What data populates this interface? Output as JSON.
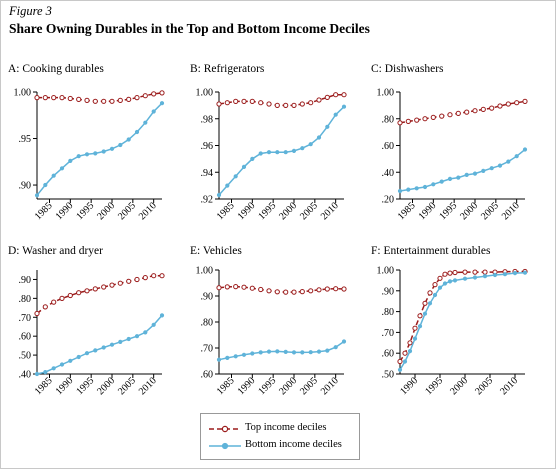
{
  "figure_label": "Figure 3",
  "figure_title": "Share Owning Durables in the Top and Bottom Income Deciles",
  "colors": {
    "top": "#9b1b1b",
    "bottom": "#5fb3d9",
    "axis": "#000000"
  },
  "legend": {
    "top": "Top income deciles",
    "bottom": "Bottom income deciles"
  },
  "chart_data": [
    {
      "type": "line",
      "title": "A: Cooking durables",
      "xlim": [
        1982,
        2012
      ],
      "ylim": [
        0.885,
        1.0
      ],
      "xticks": [
        1985,
        1990,
        1995,
        2000,
        2005,
        2010
      ],
      "yticks": [
        0.9,
        0.95,
        1.0
      ],
      "ytick_labels": [
        ".90",
        ".95",
        "1.00"
      ],
      "series": [
        {
          "name": "Top income deciles",
          "x": [
            1982,
            1984,
            1986,
            1988,
            1990,
            1992,
            1994,
            1996,
            1998,
            2000,
            2002,
            2004,
            2006,
            2008,
            2010,
            2012
          ],
          "y": [
            0.994,
            0.994,
            0.994,
            0.994,
            0.993,
            0.992,
            0.991,
            0.99,
            0.99,
            0.99,
            0.991,
            0.992,
            0.994,
            0.996,
            0.998,
            0.999
          ]
        },
        {
          "name": "Bottom income deciles",
          "x": [
            1982,
            1984,
            1986,
            1988,
            1990,
            1992,
            1994,
            1996,
            1998,
            2000,
            2002,
            2004,
            2006,
            2008,
            2010,
            2012
          ],
          "y": [
            0.889,
            0.9,
            0.91,
            0.918,
            0.926,
            0.931,
            0.933,
            0.934,
            0.936,
            0.939,
            0.943,
            0.949,
            0.957,
            0.967,
            0.979,
            0.988
          ]
        }
      ]
    },
    {
      "type": "line",
      "title": "B: Refrigerators",
      "xlim": [
        1982,
        2012
      ],
      "ylim": [
        0.92,
        1.0
      ],
      "xticks": [
        1985,
        1990,
        1995,
        2000,
        2005,
        2010
      ],
      "yticks": [
        0.92,
        0.94,
        0.96,
        0.98,
        1.0
      ],
      "ytick_labels": [
        ".92",
        ".94",
        ".96",
        ".98",
        "1.00"
      ],
      "series": [
        {
          "name": "Top income deciles",
          "x": [
            1982,
            1984,
            1986,
            1988,
            1990,
            1992,
            1994,
            1996,
            1998,
            2000,
            2002,
            2004,
            2006,
            2008,
            2010,
            2012
          ],
          "y": [
            0.991,
            0.992,
            0.993,
            0.993,
            0.993,
            0.992,
            0.991,
            0.99,
            0.99,
            0.99,
            0.991,
            0.992,
            0.994,
            0.996,
            0.998,
            0.998
          ]
        },
        {
          "name": "Bottom income deciles",
          "x": [
            1982,
            1984,
            1986,
            1988,
            1990,
            1992,
            1994,
            1996,
            1998,
            2000,
            2002,
            2004,
            2006,
            2008,
            2010,
            2012
          ],
          "y": [
            0.923,
            0.93,
            0.937,
            0.944,
            0.95,
            0.954,
            0.955,
            0.955,
            0.955,
            0.956,
            0.958,
            0.961,
            0.966,
            0.974,
            0.983,
            0.989
          ]
        }
      ]
    },
    {
      "type": "line",
      "title": "C: Dishwashers",
      "xlim": [
        1982,
        2012
      ],
      "ylim": [
        0.2,
        1.0
      ],
      "xticks": [
        1985,
        1990,
        1995,
        2000,
        2005,
        2010
      ],
      "yticks": [
        0.2,
        0.4,
        0.6,
        0.8,
        1.0
      ],
      "ytick_labels": [
        ".20",
        ".40",
        ".60",
        ".80",
        "1.00"
      ],
      "series": [
        {
          "name": "Top income deciles",
          "x": [
            1982,
            1984,
            1986,
            1988,
            1990,
            1992,
            1994,
            1996,
            1998,
            2000,
            2002,
            2004,
            2006,
            2008,
            2010,
            2012
          ],
          "y": [
            0.77,
            0.78,
            0.79,
            0.8,
            0.81,
            0.82,
            0.83,
            0.84,
            0.85,
            0.86,
            0.87,
            0.88,
            0.895,
            0.91,
            0.92,
            0.93
          ]
        },
        {
          "name": "Bottom income deciles",
          "x": [
            1982,
            1984,
            1986,
            1988,
            1990,
            1992,
            1994,
            1996,
            1998,
            2000,
            2002,
            2004,
            2006,
            2008,
            2010,
            2012
          ],
          "y": [
            0.26,
            0.27,
            0.28,
            0.29,
            0.31,
            0.33,
            0.35,
            0.36,
            0.38,
            0.39,
            0.41,
            0.43,
            0.45,
            0.48,
            0.52,
            0.57
          ]
        }
      ]
    },
    {
      "type": "line",
      "title": "D: Washer and dryer",
      "xlim": [
        1982,
        2012
      ],
      "ylim": [
        0.4,
        0.95
      ],
      "xticks": [
        1985,
        1990,
        1995,
        2000,
        2005,
        2010
      ],
      "yticks": [
        0.4,
        0.5,
        0.6,
        0.7,
        0.8,
        0.9
      ],
      "ytick_labels": [
        ".40",
        ".50",
        ".60",
        ".70",
        ".80",
        ".90"
      ],
      "series": [
        {
          "name": "Top income deciles",
          "x": [
            1982,
            1984,
            1986,
            1988,
            1990,
            1992,
            1994,
            1996,
            1998,
            2000,
            2002,
            2004,
            2006,
            2008,
            2010,
            2012
          ],
          "y": [
            0.72,
            0.755,
            0.78,
            0.8,
            0.815,
            0.83,
            0.84,
            0.85,
            0.86,
            0.87,
            0.88,
            0.89,
            0.9,
            0.91,
            0.92,
            0.92
          ]
        },
        {
          "name": "Bottom income deciles",
          "x": [
            1982,
            1984,
            1986,
            1988,
            1990,
            1992,
            1994,
            1996,
            1998,
            2000,
            2002,
            2004,
            2006,
            2008,
            2010,
            2012
          ],
          "y": [
            0.4,
            0.41,
            0.43,
            0.45,
            0.47,
            0.49,
            0.51,
            0.525,
            0.54,
            0.555,
            0.57,
            0.585,
            0.6,
            0.62,
            0.66,
            0.71
          ]
        }
      ]
    },
    {
      "type": "line",
      "title": "E: Vehicles",
      "xlim": [
        1982,
        2012
      ],
      "ylim": [
        0.6,
        1.0
      ],
      "xticks": [
        1985,
        1990,
        1995,
        2000,
        2005,
        2010
      ],
      "yticks": [
        0.6,
        0.7,
        0.8,
        0.9,
        1.0
      ],
      "ytick_labels": [
        ".60",
        ".70",
        ".80",
        ".90",
        "1.00"
      ],
      "series": [
        {
          "name": "Top income deciles",
          "x": [
            1982,
            1984,
            1986,
            1988,
            1990,
            1992,
            1994,
            1996,
            1998,
            2000,
            2002,
            2004,
            2006,
            2008,
            2010,
            2012
          ],
          "y": [
            0.932,
            0.935,
            0.936,
            0.934,
            0.93,
            0.925,
            0.92,
            0.916,
            0.915,
            0.915,
            0.917,
            0.92,
            0.924,
            0.927,
            0.928,
            0.927
          ]
        },
        {
          "name": "Bottom income deciles",
          "x": [
            1982,
            1984,
            1986,
            1988,
            1990,
            1992,
            1994,
            1996,
            1998,
            2000,
            2002,
            2004,
            2006,
            2008,
            2010,
            2012
          ],
          "y": [
            0.655,
            0.662,
            0.668,
            0.674,
            0.679,
            0.683,
            0.686,
            0.687,
            0.685,
            0.683,
            0.683,
            0.684,
            0.686,
            0.69,
            0.703,
            0.725
          ]
        }
      ]
    },
    {
      "type": "line",
      "title": "F: Entertainment durables",
      "xlim": [
        1987,
        2012
      ],
      "ylim": [
        0.5,
        1.0
      ],
      "xticks": [
        1990,
        1995,
        2000,
        2005,
        2010
      ],
      "yticks": [
        0.5,
        0.6,
        0.7,
        0.8,
        0.9,
        1.0
      ],
      "ytick_labels": [
        ".50",
        ".60",
        ".70",
        ".80",
        ".90",
        "1.00"
      ],
      "series": [
        {
          "name": "Top income deciles",
          "x": [
            1987,
            1988,
            1989,
            1990,
            1991,
            1992,
            1993,
            1994,
            1995,
            1996,
            1997,
            1998,
            2000,
            2002,
            2004,
            2006,
            2008,
            2010,
            2012
          ],
          "y": [
            0.56,
            0.6,
            0.65,
            0.72,
            0.78,
            0.84,
            0.89,
            0.93,
            0.96,
            0.98,
            0.985,
            0.988,
            0.99,
            0.99,
            0.99,
            0.99,
            0.992,
            0.993,
            0.993
          ]
        },
        {
          "name": "Bottom income deciles",
          "x": [
            1987,
            1988,
            1989,
            1990,
            1991,
            1992,
            1993,
            1994,
            1995,
            1996,
            1997,
            1998,
            2000,
            2002,
            2004,
            2006,
            2008,
            2010,
            2012
          ],
          "y": [
            0.52,
            0.56,
            0.61,
            0.67,
            0.73,
            0.79,
            0.84,
            0.88,
            0.915,
            0.935,
            0.945,
            0.95,
            0.958,
            0.964,
            0.97,
            0.976,
            0.98,
            0.985,
            0.987
          ]
        }
      ]
    }
  ]
}
